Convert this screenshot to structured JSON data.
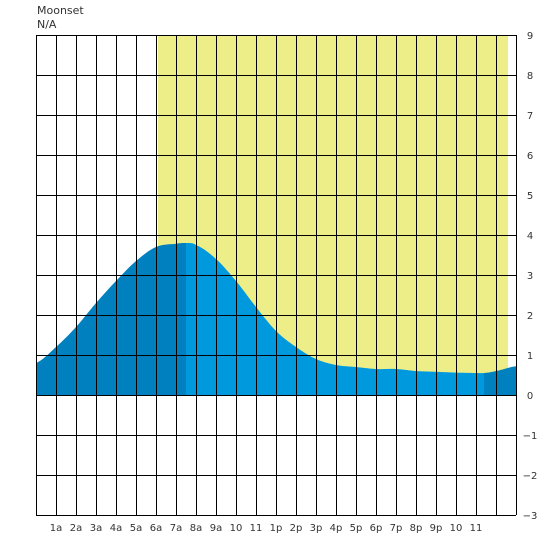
{
  "header": {
    "moon_label": "Moonset",
    "moon_value": "N/A"
  },
  "chart_data": {
    "type": "area",
    "title": "",
    "xlabel": "",
    "ylabel": "",
    "x_range_hours": [
      0,
      24
    ],
    "ylim": [
      -3,
      9
    ],
    "y_ticks": [
      9,
      8,
      7,
      6,
      5,
      4,
      3,
      2,
      1,
      0,
      -1,
      -2,
      -3
    ],
    "x_ticks": [
      {
        "h": 1,
        "label": "1a"
      },
      {
        "h": 2,
        "label": "2a"
      },
      {
        "h": 3,
        "label": "3a"
      },
      {
        "h": 4,
        "label": "4a"
      },
      {
        "h": 5,
        "label": "5a"
      },
      {
        "h": 6,
        "label": "6a"
      },
      {
        "h": 7,
        "label": "7a"
      },
      {
        "h": 8,
        "label": "8a"
      },
      {
        "h": 9,
        "label": "9a"
      },
      {
        "h": 10,
        "label": "10"
      },
      {
        "h": 11,
        "label": "11"
      },
      {
        "h": 12,
        "label": "1p"
      },
      {
        "h": 13,
        "label": "2p"
      },
      {
        "h": 14,
        "label": "3p"
      },
      {
        "h": 15,
        "label": "4p"
      },
      {
        "h": 16,
        "label": "5p"
      },
      {
        "h": 17,
        "label": "6p"
      },
      {
        "h": 18,
        "label": "7p"
      },
      {
        "h": 19,
        "label": "8p"
      },
      {
        "h": 20,
        "label": "9p"
      },
      {
        "h": 21,
        "label": "10"
      },
      {
        "h": 22,
        "label": "11"
      }
    ],
    "daylight_hours": [
      6.1,
      23.6
    ],
    "tide_extremes": [
      {
        "h": 7.5,
        "type": "high",
        "value": 3.8
      },
      {
        "h": 22.4,
        "type": "low",
        "value": 0.55
      }
    ],
    "series": [
      {
        "x": [
          0,
          1,
          2,
          3,
          4,
          5,
          6,
          7,
          7.5,
          8,
          9,
          10,
          11,
          12,
          13,
          14,
          15,
          16,
          17,
          18,
          19,
          20,
          21,
          22,
          22.4,
          23,
          24
        ],
        "y": [
          0.8,
          1.2,
          1.7,
          2.3,
          2.85,
          3.35,
          3.7,
          3.78,
          3.8,
          3.75,
          3.4,
          2.85,
          2.2,
          1.6,
          1.2,
          0.9,
          0.75,
          0.7,
          0.65,
          0.65,
          0.6,
          0.58,
          0.56,
          0.55,
          0.55,
          0.6,
          0.72
        ]
      }
    ],
    "colors": {
      "daylight": "#eeee88",
      "tide_rising": "#0080bf",
      "tide_falling": "#0099dd",
      "grid": "#000000",
      "background": "#ffffff"
    }
  }
}
